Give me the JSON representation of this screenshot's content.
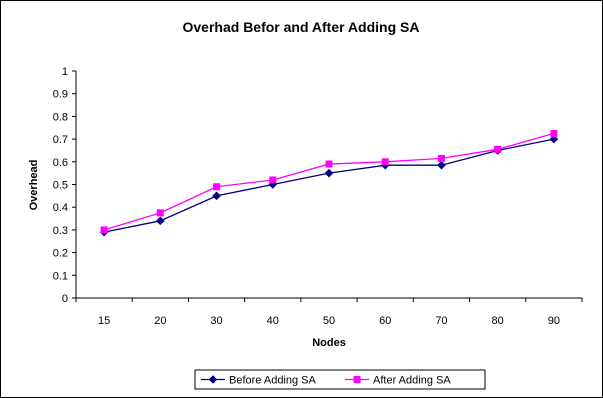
{
  "chart_data": {
    "type": "line",
    "title": "Overhad Befor and After Adding SA",
    "xlabel": "Nodes",
    "ylabel": "Overhead",
    "categories": [
      "15",
      "20",
      "30",
      "40",
      "50",
      "60",
      "70",
      "80",
      "90"
    ],
    "ylim": [
      0,
      1
    ],
    "yticks": [
      "0",
      "0.1",
      "0.2",
      "0.3",
      "0.4",
      "0.5",
      "0.6",
      "0.7",
      "0.8",
      "0.9",
      "1"
    ],
    "grid": false,
    "legend_position": "bottom",
    "series": [
      {
        "name": "Before Adding SA",
        "color": "#000080",
        "marker": "diamond",
        "values": [
          0.29,
          0.34,
          0.45,
          0.5,
          0.55,
          0.585,
          0.585,
          0.65,
          0.7
        ]
      },
      {
        "name": "After Adding SA",
        "color": "#ff00ff",
        "marker": "square",
        "values": [
          0.3,
          0.375,
          0.49,
          0.52,
          0.59,
          0.6,
          0.615,
          0.655,
          0.725
        ]
      }
    ]
  }
}
